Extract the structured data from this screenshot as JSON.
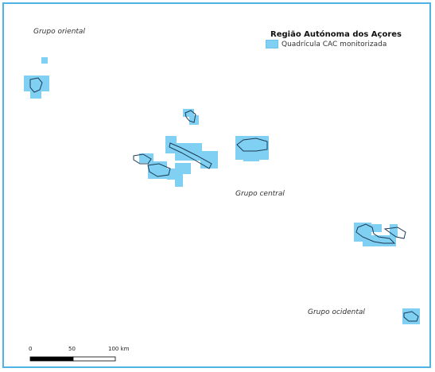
{
  "legend": {
    "title": "Região Autónoma dos Açores",
    "items": [
      {
        "label": "Quadrícula CAC monitorizada",
        "color": "#7fd0f2"
      }
    ]
  },
  "groups": {
    "oriental": "Grupo oriental",
    "central": "Grupo central",
    "ocidental": "Grupo ocidental"
  },
  "scale": {
    "ticks": [
      "0",
      "50",
      "100 km"
    ],
    "colors": [
      "#000000",
      "#ffffff"
    ]
  },
  "colors": {
    "frame": "#4fb3e3",
    "grid_cell": "#7fd0f2",
    "island_outline": "#1e3a55"
  }
}
